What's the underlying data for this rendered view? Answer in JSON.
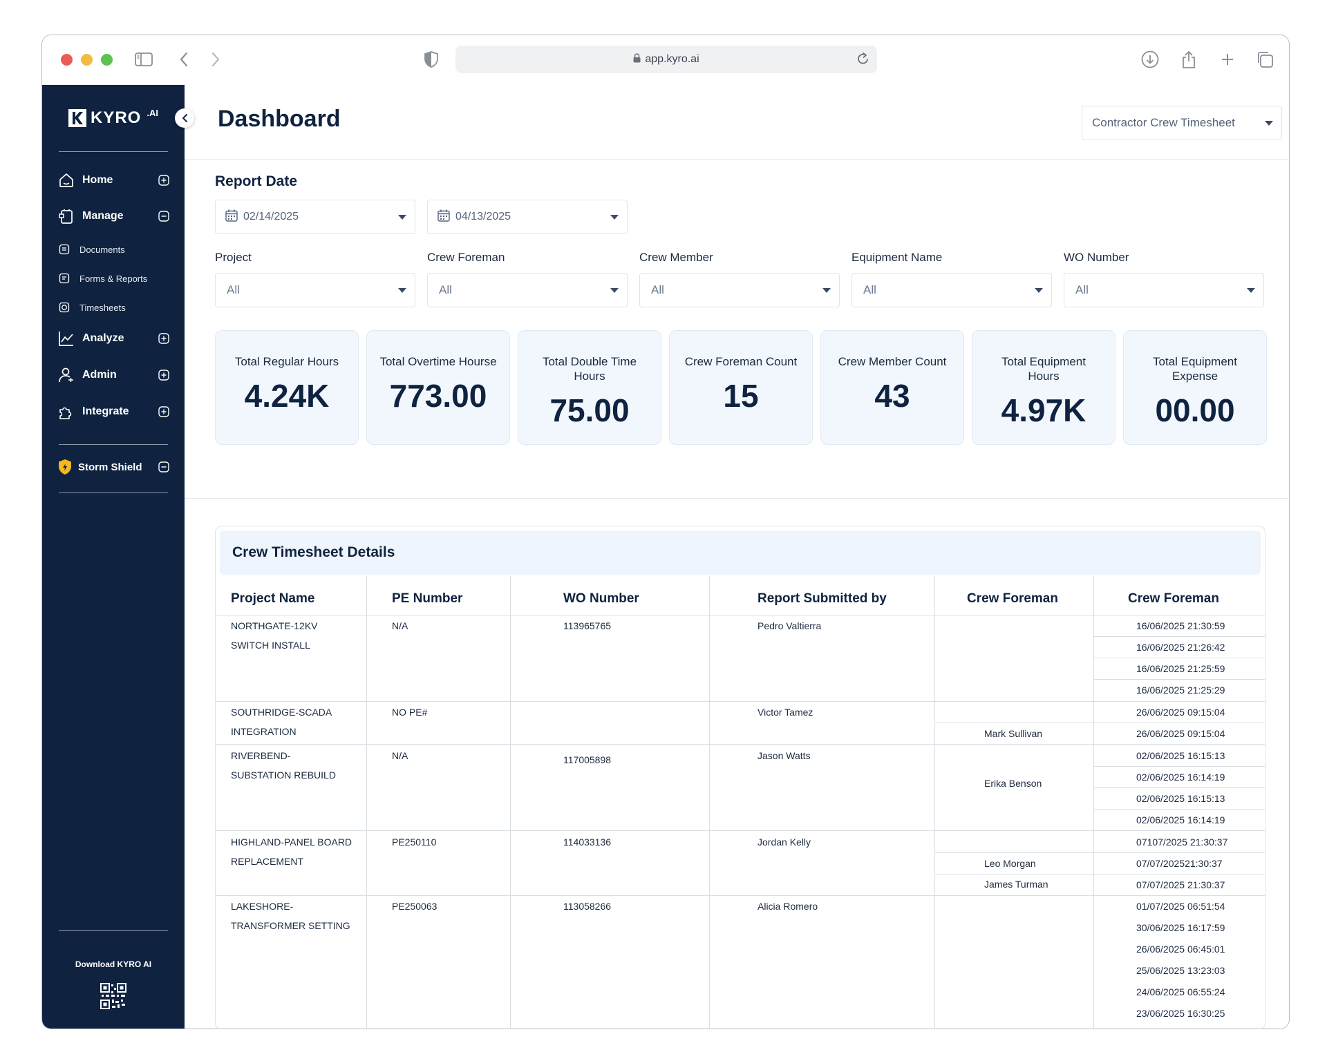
{
  "browser": {
    "url": "app.kyro.ai"
  },
  "sidebar": {
    "logo_text": "KYRO",
    "logo_suffix": ".AI",
    "items": [
      {
        "label": "Home"
      },
      {
        "label": "Manage"
      },
      {
        "label": "Analyze"
      },
      {
        "label": "Admin"
      },
      {
        "label": "Integrate"
      }
    ],
    "sub_items": [
      {
        "label": "Documents"
      },
      {
        "label": "Forms & Reports"
      },
      {
        "label": "Timesheets"
      }
    ],
    "storm_shield": "Storm Shield",
    "download_label": "Download KYRO AI"
  },
  "header": {
    "title": "Dashboard",
    "report_select": "Contractor Crew Timesheet"
  },
  "filters": {
    "report_date_label": "Report Date",
    "date_from": "02/14/2025",
    "date_to": "04/13/2025",
    "fields": [
      {
        "label": "Project",
        "value": "All"
      },
      {
        "label": "Crew Foreman",
        "value": "All"
      },
      {
        "label": "Crew Member",
        "value": "All"
      },
      {
        "label": "Equipment Name",
        "value": "All"
      },
      {
        "label": "WO Number",
        "value": "All"
      }
    ]
  },
  "stats": [
    {
      "label": "Total Regular Hours",
      "value": "4.24K"
    },
    {
      "label": "Total Overtime Hourse",
      "value": "773.00"
    },
    {
      "label": "Total Double Time Hours",
      "value": "75.00"
    },
    {
      "label": "Crew Foreman Count",
      "value": "15"
    },
    {
      "label": "Crew Member Count",
      "value": "43"
    },
    {
      "label": "Total Equipment Hours",
      "value": "4.97K"
    },
    {
      "label": "Total Equipment Expense",
      "value": "00.00"
    }
  ],
  "table": {
    "title": "Crew Timesheet Details",
    "columns": [
      "Project Name",
      "PE Number",
      "WO Number",
      "Report Submitted by",
      "Crew Foreman",
      "Crew Foreman"
    ],
    "rows": [
      {
        "project_line1": "NORTHGATE-12KV",
        "project_line2": "SWITCH INSTALL",
        "pe": "N/A",
        "wo": "113965765",
        "submitted_by": "Pedro Valtierra",
        "foremen": [
          ""
        ],
        "timestamps": [
          "16/06/2025 21:30:59",
          "16/06/2025 21:26:42",
          "16/06/2025 21:25:59",
          "16/06/2025 21:25:29"
        ]
      },
      {
        "project_line1": "SOUTHRIDGE-SCADA",
        "project_line2": "INTEGRATION",
        "pe": "NO PE#",
        "wo": "",
        "submitted_by": "Victor Tamez",
        "foremen": [
          "",
          "Mark Sullivan"
        ],
        "timestamps": [
          "26/06/2025 09:15:04",
          "26/06/2025 09:15:04"
        ]
      },
      {
        "project_line1": "RIVERBEND-",
        "project_line2": "SUBSTATION REBUILD",
        "pe": "N/A",
        "wo": "117005898",
        "submitted_by": "Jason Watts",
        "foremen": [
          "Erika Benson"
        ],
        "timestamps": [
          "02/06/2025 16:15:13",
          "02/06/2025 16:14:19",
          "02/06/2025 16:15:13",
          "02/06/2025 16:14:19"
        ]
      },
      {
        "project_line1": "HIGHLAND-PANEL BOARD",
        "project_line2": "REPLACEMENT",
        "pe": "PE250110",
        "wo": "114033136",
        "submitted_by": "Jordan Kelly",
        "foremen": [
          "",
          "Leo Morgan",
          "James Turman"
        ],
        "timestamps": [
          "07107/2025 21:30:37",
          "07/07/202521:30:37",
          "07/07/2025 21:30:37"
        ]
      },
      {
        "project_line1": "LAKESHORE-",
        "project_line2": "TRANSFORMER SETTING",
        "pe": "PE250063",
        "wo": "113058266",
        "submitted_by": "Alicia Romero",
        "foremen": [
          ""
        ],
        "timestamps": [
          "01/07/2025 06:51:54",
          "30/06/2025 16:17:59",
          "26/06/2025 06:45:01",
          "25/06/2025 13:23:03",
          "24/06/2025 06:55:24",
          "23/06/2025 16:30:25"
        ]
      }
    ]
  }
}
